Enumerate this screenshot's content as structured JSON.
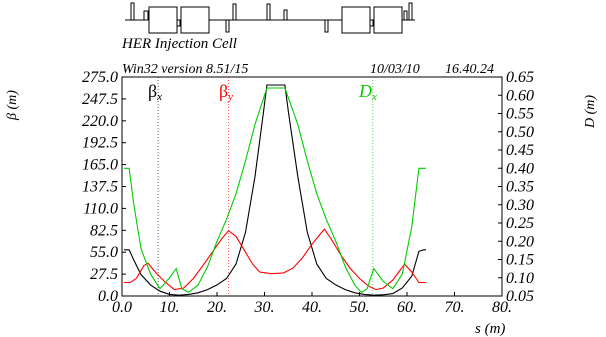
{
  "chart_data": {
    "type": "line",
    "lattice_title": "HER Injection Cell",
    "header_left": "Win32 version 8.51/15",
    "header_date": "10/03/10",
    "header_time": "16.40.24",
    "xlabel": "s (m)",
    "ylabel_left": "β (m)",
    "ylabel_right": "D (m)",
    "xlim": [
      0,
      80
    ],
    "ylim_left": [
      0,
      275
    ],
    "ylim_right": [
      0.05,
      0.65
    ],
    "x_ticks": [
      "0.0",
      "10.",
      "20.",
      "30.",
      "40.",
      "50.",
      "60.",
      "70.",
      "80."
    ],
    "y_left_ticks": [
      "0.0",
      "27.5",
      "55.0",
      "82.5",
      "110.0",
      "137.5",
      "165.0",
      "192.5",
      "220.0",
      "247.5",
      "275.0"
    ],
    "y_right_ticks": [
      "0.05",
      "0.10",
      "0.15",
      "0.20",
      "0.25",
      "0.30",
      "0.35",
      "0.40",
      "0.45",
      "0.50",
      "0.55",
      "0.60",
      "0.65"
    ],
    "colors": {
      "beta_x": "#000000",
      "beta_y": "#ff0000",
      "d_x": "#00cc00",
      "marker": "#777777",
      "lattice": "#000000"
    },
    "markers": [
      {
        "s": 7.6,
        "color": "#000000"
      },
      {
        "s": 22.4,
        "color": "#ff0000"
      },
      {
        "s": 52.8,
        "color": "#00cc00"
      }
    ],
    "series": [
      {
        "name": "βx",
        "axis": "left",
        "x": [
          0.4,
          1.5,
          2.5,
          4,
          6,
          8,
          10,
          12,
          14,
          16,
          18,
          20,
          22,
          24,
          26,
          28,
          29.8,
          30.5,
          34.3,
          35,
          37,
          39,
          41,
          43,
          45,
          47,
          49,
          51,
          53,
          55,
          57,
          59,
          61,
          62.5,
          63.5,
          64
        ],
        "y": [
          58,
          58,
          45,
          27,
          14,
          6,
          2,
          1,
          2,
          4,
          8,
          14,
          22,
          40,
          80,
          150,
          232,
          265,
          265,
          232,
          150,
          80,
          40,
          22,
          14,
          8,
          4,
          2,
          1,
          1.5,
          3,
          10,
          25,
          56,
          58,
          58
        ]
      },
      {
        "name": "βy",
        "axis": "left",
        "x": [
          0.4,
          1.7,
          3,
          4.6,
          5.5,
          7,
          9,
          11,
          13,
          15,
          17,
          19,
          21,
          22.4,
          24,
          26,
          27.5,
          29,
          31.5,
          34,
          36,
          38,
          40,
          41.5,
          42.6,
          44,
          46,
          48,
          50,
          52,
          53.5,
          55,
          57,
          58.5,
          59.5,
          61,
          62.5,
          64
        ],
        "y": [
          17,
          17,
          22,
          38,
          41,
          30,
          18,
          8,
          10,
          22,
          38,
          55,
          72,
          82,
          75,
          55,
          40,
          30,
          28,
          29,
          35,
          48,
          65,
          76,
          84,
          72,
          52,
          35,
          22,
          12,
          8,
          10,
          20,
          32,
          40,
          30,
          17,
          17
        ]
      },
      {
        "name": "Dx",
        "axis": "right",
        "x": [
          0.4,
          1.5,
          2.5,
          4,
          6,
          8,
          10,
          11.4,
          12.6,
          14,
          16,
          18,
          20,
          22,
          24,
          26,
          28,
          30.5,
          34.3,
          37,
          39,
          41,
          43,
          45,
          47,
          49,
          50.4,
          51.6,
          53,
          55,
          57,
          59,
          61,
          62.5,
          64
        ],
        "y": [
          0.4,
          0.4,
          0.3,
          0.18,
          0.11,
          0.07,
          0.1,
          0.125,
          0.07,
          0.06,
          0.08,
          0.13,
          0.2,
          0.26,
          0.33,
          0.42,
          0.52,
          0.62,
          0.62,
          0.52,
          0.42,
          0.33,
          0.26,
          0.2,
          0.13,
          0.08,
          0.06,
          0.07,
          0.125,
          0.09,
          0.07,
          0.11,
          0.24,
          0.4,
          0.4
        ]
      }
    ]
  }
}
